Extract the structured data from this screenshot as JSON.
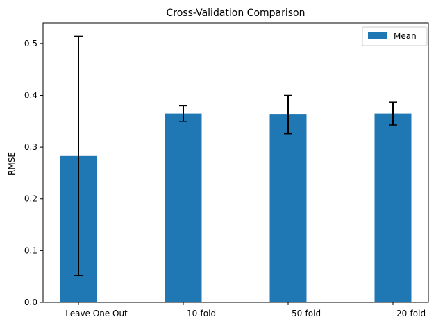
{
  "chart_data": {
    "type": "bar",
    "title": "Cross-Validation Comparison",
    "xlabel": "",
    "ylabel": "RMSE",
    "categories": [
      "Leave One Out",
      "10-fold",
      "50-fold",
      "20-fold"
    ],
    "series": [
      {
        "name": "Mean",
        "values": [
          0.283,
          0.365,
          0.363,
          0.365
        ],
        "error": [
          0.231,
          0.015,
          0.037,
          0.022
        ],
        "color": "#1f77b4"
      }
    ],
    "ylim": [
      0,
      0.54
    ],
    "yticks": [
      0.0,
      0.1,
      0.2,
      0.3,
      0.4,
      0.5
    ],
    "ytick_labels": [
      "0.0",
      "0.1",
      "0.2",
      "0.3",
      "0.4",
      "0.5"
    ],
    "grid": false,
    "legend": "top-right"
  }
}
